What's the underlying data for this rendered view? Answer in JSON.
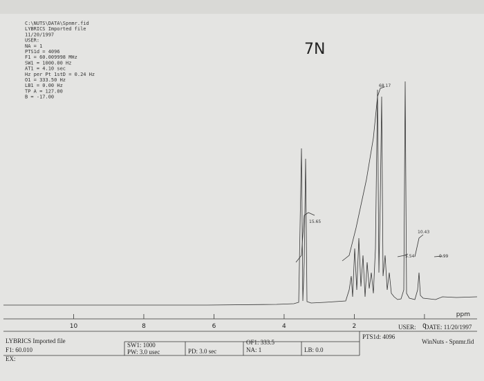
{
  "header": {
    "lines": [
      "C:\\NUTS\\DATA\\Spnmr.fid",
      "LYBRICS Imported file",
      "11/20/1997",
      "USER:",
      "NA = 1",
      "PTS1d = 4096",
      "F1 = 60.009998 MHz",
      "SW1 = 1000.00 Hz",
      "AT1 = 4.10 sec",
      "Hz per Pt 1stD = 0.24 Hz",
      "O1 = 333.50 Hz",
      "LB1 = 0.00 Hz",
      "TP A = 127.00",
      "B = -17.00"
    ]
  },
  "annotation": "7N",
  "spectrum": {
    "xlim": [
      12,
      -1.5
    ],
    "xticks": [
      10,
      8,
      6,
      4,
      2,
      0
    ],
    "x_label": "ppm",
    "integral_labels": [
      "15.65",
      "68.17",
      "10.43",
      "5.54",
      "0.99"
    ]
  },
  "footer": {
    "user": "USER:",
    "date": "DATE: 11/20/1997",
    "pts": "PTS1d: 4096",
    "program": "WinNuts - Spnmr.fid",
    "file": "LYBRICS Imported file",
    "f1": "F1: 60.010",
    "ex": "EX:",
    "sw1": "SW1: 1000",
    "pw": "PW: 3.0 usec",
    "pd": "PD: 3.0 sec",
    "of1": "OF1: 333.5",
    "na": "NA: 1",
    "lb": "LB: 0.0"
  }
}
